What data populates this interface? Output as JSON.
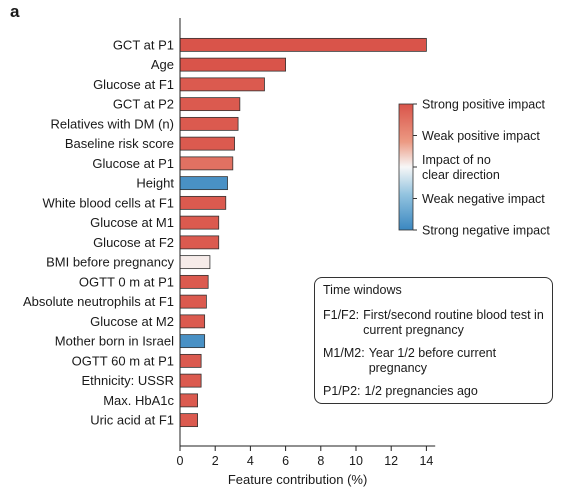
{
  "panel_label": "a",
  "chart_data": {
    "type": "bar",
    "orientation": "horizontal",
    "categories": [
      "GCT at P1",
      "Age",
      "Glucose at F1",
      "GCT at P2",
      "Relatives with DM (n)",
      "Baseline risk score",
      "Glucose at P1",
      "Height",
      "White blood cells at F1",
      "Glucose at M1",
      "Glucose at F2",
      "BMI before pregnancy",
      "OGTT 0 m at P1",
      "Absolute neutrophils at F1",
      "Glucose at M2",
      "Mother born in Israel",
      "OGTT 60 m at P1",
      "Ethnicity: USSR",
      "Max. HbA1c",
      "Uric acid at F1"
    ],
    "values": [
      14.0,
      6.0,
      4.8,
      3.4,
      3.3,
      3.1,
      3.0,
      2.7,
      2.6,
      2.2,
      2.2,
      1.7,
      1.6,
      1.5,
      1.4,
      1.4,
      1.2,
      1.2,
      1.0,
      1.0
    ],
    "impact": [
      1.0,
      1.0,
      0.95,
      0.95,
      0.95,
      0.95,
      0.75,
      -0.9,
      0.95,
      0.95,
      0.95,
      0.05,
      0.95,
      0.95,
      0.95,
      -0.9,
      0.95,
      0.95,
      0.95,
      0.95
    ],
    "xlabel": "Feature contribution (%)",
    "xlim": [
      0,
      14.5
    ],
    "xticks": [
      0,
      2,
      4,
      6,
      8,
      10,
      12,
      14
    ],
    "grid": false,
    "colorscale": {
      "labels": [
        "Strong positive impact",
        "Weak positive impact",
        "Impact of no\nclear direction",
        "Weak negative impact",
        "Strong negative impact"
      ],
      "colors": [
        "#d9544a",
        "#ec9a83",
        "#f7f7f7",
        "#92c3df",
        "#3a87c0"
      ]
    }
  },
  "time_windows": {
    "title": "Time windows",
    "entries": [
      {
        "key": "F1/F2:",
        "desc": "First/second routine blood test in current pregnancy"
      },
      {
        "key": "M1/M2:",
        "desc": "Year 1/2 before current pregnancy"
      },
      {
        "key": "P1/P2:",
        "desc": "1/2 pregnancies ago"
      }
    ]
  }
}
